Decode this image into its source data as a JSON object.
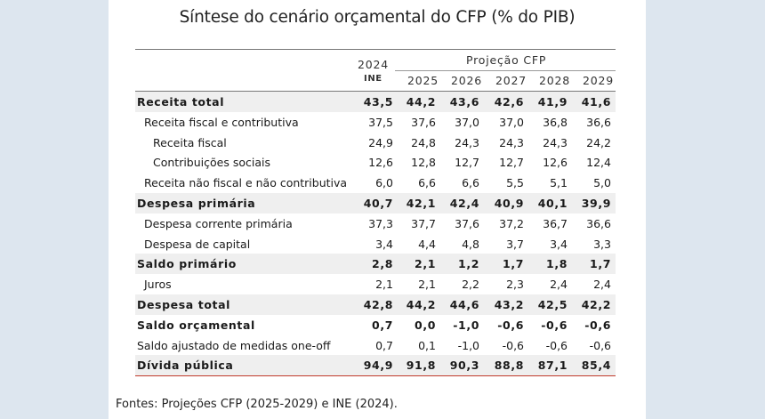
{
  "title": "Síntese do cenário orçamental do CFP (% do PIB)",
  "header": {
    "year_2024": "2024",
    "ine": "INE",
    "projection_label": "Projeção CFP",
    "years": [
      "2025",
      "2026",
      "2027",
      "2028",
      "2029"
    ]
  },
  "rows": [
    {
      "label": "Receita total",
      "values": [
        "43,5",
        "44,2",
        "43,6",
        "42,6",
        "41,9",
        "41,6"
      ]
    },
    {
      "label": "Receita fiscal e contributiva",
      "values": [
        "37,5",
        "37,6",
        "37,0",
        "37,0",
        "36,8",
        "36,6"
      ]
    },
    {
      "label": "Receita fiscal",
      "values": [
        "24,9",
        "24,8",
        "24,3",
        "24,3",
        "24,3",
        "24,2"
      ]
    },
    {
      "label": "Contribuições sociais",
      "values": [
        "12,6",
        "12,8",
        "12,7",
        "12,7",
        "12,6",
        "12,4"
      ]
    },
    {
      "label": "Receita não fiscal e não contributiva",
      "values": [
        "6,0",
        "6,6",
        "6,6",
        "5,5",
        "5,1",
        "5,0"
      ]
    },
    {
      "label": "Despesa primária",
      "values": [
        "40,7",
        "42,1",
        "42,4",
        "40,9",
        "40,1",
        "39,9"
      ]
    },
    {
      "label": "Despesa corrente primária",
      "values": [
        "37,3",
        "37,7",
        "37,6",
        "37,2",
        "36,7",
        "36,6"
      ]
    },
    {
      "label": "Despesa de capital",
      "values": [
        "3,4",
        "4,4",
        "4,8",
        "3,7",
        "3,4",
        "3,3"
      ]
    },
    {
      "label": "Saldo primário",
      "values": [
        "2,8",
        "2,1",
        "1,2",
        "1,7",
        "1,8",
        "1,7"
      ]
    },
    {
      "label": "Juros",
      "values": [
        "2,1",
        "2,1",
        "2,2",
        "2,3",
        "2,4",
        "2,4"
      ]
    },
    {
      "label": "Despesa total",
      "values": [
        "42,8",
        "44,2",
        "44,6",
        "43,2",
        "42,5",
        "42,2"
      ]
    },
    {
      "label": "Saldo orçamental",
      "values": [
        "0,7",
        "0,0",
        "-1,0",
        "-0,6",
        "-0,6",
        "-0,6"
      ]
    },
    {
      "label": "Saldo ajustado de medidas one-off",
      "values": [
        "0,7",
        "0,1",
        "-1,0",
        "-0,6",
        "-0,6",
        "-0,6"
      ]
    },
    {
      "label": "Dívida pública",
      "values": [
        "94,9",
        "91,8",
        "90,3",
        "88,8",
        "87,1",
        "85,4"
      ]
    }
  ],
  "source": "Fontes: Projeções CFP (2025-2029) e INE (2024)."
}
